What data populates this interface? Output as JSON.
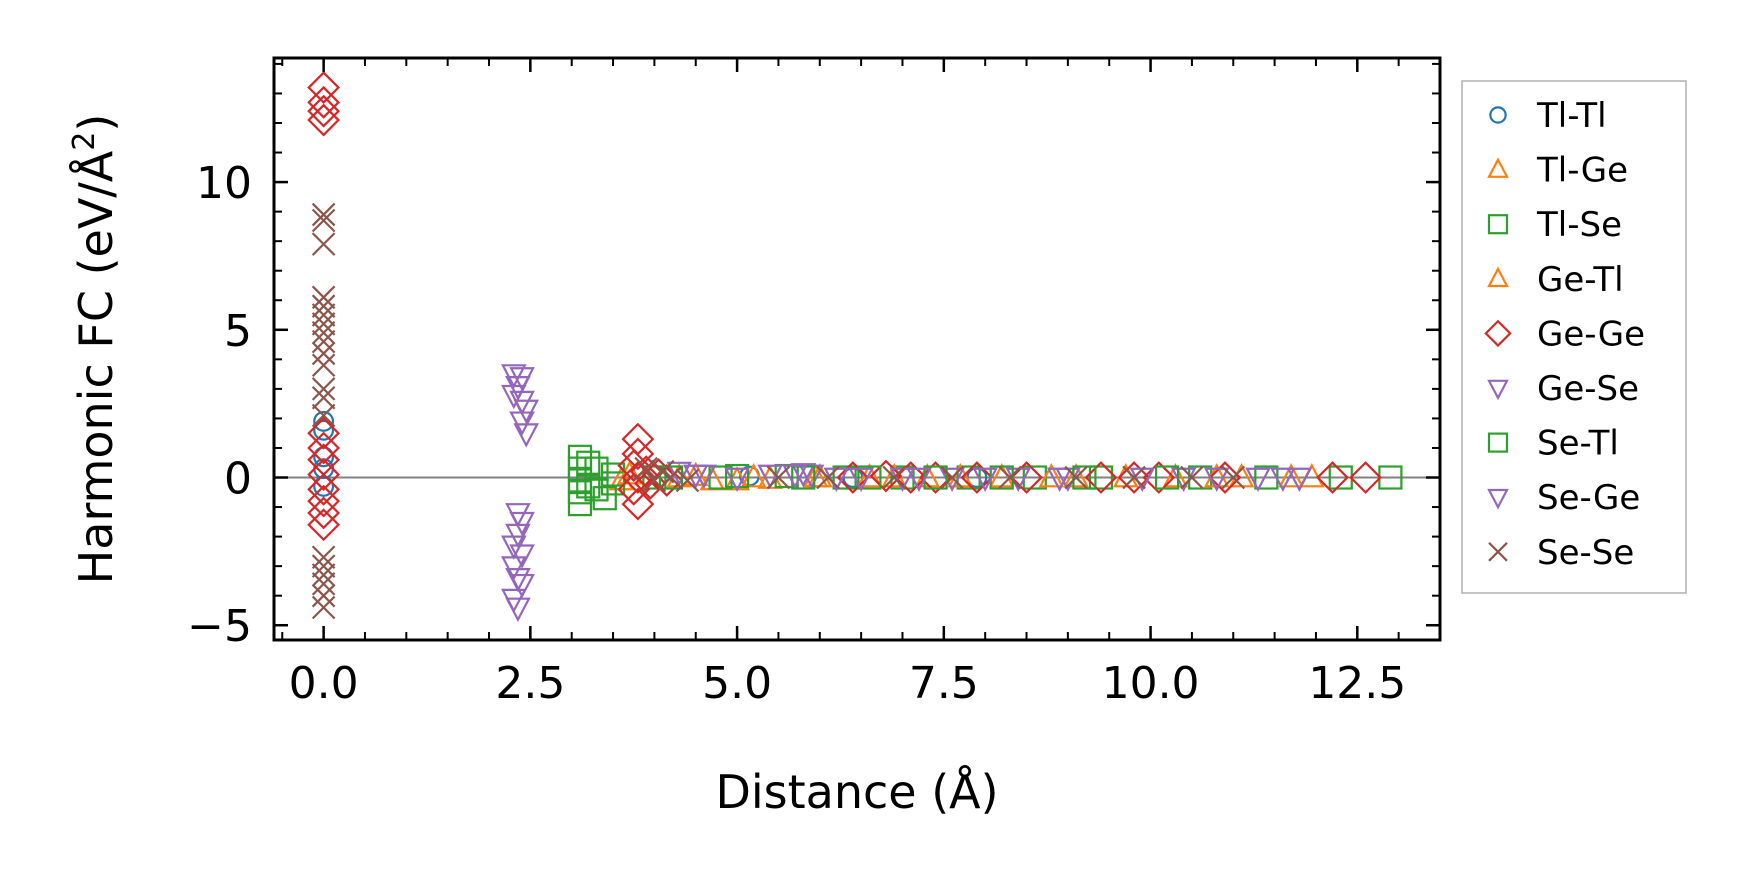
{
  "chart_data": {
    "type": "scatter",
    "title": "",
    "xlabel": "Distance (Å)",
    "ylabel_main": "Harmonic FC (eV/Å",
    "ylabel_sup": "2",
    "ylabel_close": ")",
    "xlim": [
      -0.6,
      13.5
    ],
    "ylim": [
      -5.5,
      14.2
    ],
    "xticks": [
      0.0,
      2.5,
      5.0,
      7.5,
      10.0,
      12.5
    ],
    "xtick_labels": [
      "0.0",
      "2.5",
      "5.0",
      "7.5",
      "10.0",
      "12.5"
    ],
    "xtick_minor_step": 0.5,
    "yticks": [
      -5,
      0,
      5,
      10
    ],
    "ytick_labels": [
      "−5",
      "0",
      "5",
      "10"
    ],
    "ytick_minor_step": 1,
    "zero_line": 0,
    "legend_position": "outside-right",
    "series": [
      {
        "name": "Tl-Tl",
        "marker": "circle",
        "color": "#1f77b4",
        "points": [
          [
            0,
            1.9
          ],
          [
            0,
            1.6
          ],
          [
            0,
            0.7
          ],
          [
            0,
            0.3
          ],
          [
            0,
            -0.3
          ],
          [
            5.15,
            0.05
          ],
          [
            6.4,
            0.0
          ],
          [
            7.9,
            0.0
          ]
        ]
      },
      {
        "name": "Tl-Ge",
        "marker": "triangle-up",
        "color": "#ff7f0e",
        "points": [
          [
            3.6,
            -0.1
          ],
          [
            4.3,
            0.0
          ],
          [
            4.7,
            -0.1
          ],
          [
            5.0,
            -0.1
          ],
          [
            5.4,
            -0.05
          ],
          [
            5.95,
            0.0
          ],
          [
            6.6,
            0.0
          ],
          [
            7.3,
            0.0
          ],
          [
            8.2,
            0.0
          ],
          [
            9.1,
            0.0
          ],
          [
            10.3,
            0.0
          ],
          [
            11.1,
            0.0
          ],
          [
            11.95,
            0.0
          ]
        ]
      },
      {
        "name": "Tl-Se",
        "marker": "square",
        "color": "#2ca02c",
        "points": [
          [
            3.1,
            0.7
          ],
          [
            3.1,
            0.3
          ],
          [
            3.1,
            -0.1
          ],
          [
            3.1,
            -0.5
          ],
          [
            3.1,
            -0.9
          ],
          [
            3.3,
            0.3
          ],
          [
            3.3,
            -0.4
          ],
          [
            3.5,
            0.1
          ],
          [
            3.5,
            -0.2
          ],
          [
            4.0,
            0.0
          ],
          [
            4.8,
            0.0
          ],
          [
            5.6,
            0.05
          ],
          [
            6.3,
            0.0
          ],
          [
            7.0,
            0.0
          ],
          [
            7.8,
            0.0
          ],
          [
            8.6,
            0.0
          ],
          [
            9.4,
            0.0
          ],
          [
            10.6,
            0.0
          ],
          [
            11.4,
            0.0
          ],
          [
            12.3,
            0.0
          ],
          [
            12.9,
            0.0
          ]
        ]
      },
      {
        "name": "Ge-Tl",
        "marker": "triangle-up",
        "color": "#ff7f0e",
        "points": [
          [
            3.7,
            0.1
          ],
          [
            4.5,
            0.05
          ],
          [
            5.2,
            0.0
          ],
          [
            6.0,
            0.0
          ],
          [
            6.9,
            0.0
          ],
          [
            7.7,
            0.0
          ],
          [
            8.8,
            0.0
          ],
          [
            9.7,
            0.0
          ],
          [
            10.8,
            0.0
          ],
          [
            11.7,
            0.0
          ]
        ]
      },
      {
        "name": "Ge-Ge",
        "marker": "diamond",
        "color": "#d62728",
        "points": [
          [
            0,
            13.2
          ],
          [
            0,
            12.7
          ],
          [
            0,
            12.4
          ],
          [
            0,
            12.1
          ],
          [
            0,
            1.5
          ],
          [
            0,
            1.0
          ],
          [
            0,
            0.6
          ],
          [
            0,
            0.1
          ],
          [
            0,
            -0.4
          ],
          [
            0,
            -0.8
          ],
          [
            0,
            -1.2
          ],
          [
            0,
            -1.6
          ],
          [
            3.8,
            1.3
          ],
          [
            3.8,
            0.8
          ],
          [
            3.75,
            0.4
          ],
          [
            3.8,
            0.0
          ],
          [
            3.75,
            -0.4
          ],
          [
            3.8,
            -0.9
          ],
          [
            3.9,
            0.2
          ],
          [
            3.95,
            -0.2
          ],
          [
            4.05,
            0.1
          ],
          [
            4.15,
            -0.1
          ],
          [
            6.4,
            0.0
          ],
          [
            6.8,
            0.05
          ],
          [
            7.1,
            0.0
          ],
          [
            7.4,
            0.0
          ],
          [
            7.9,
            0.0
          ],
          [
            8.5,
            0.0
          ],
          [
            9.4,
            0.0
          ],
          [
            9.8,
            0.0
          ],
          [
            10.1,
            0.0
          ],
          [
            10.9,
            0.0
          ],
          [
            12.2,
            0.0
          ],
          [
            12.6,
            0.0
          ]
        ]
      },
      {
        "name": "Ge-Se",
        "marker": "triangle-down",
        "color": "#9467bd",
        "points": [
          [
            2.3,
            3.5
          ],
          [
            2.4,
            3.4
          ],
          [
            2.35,
            3.1
          ],
          [
            2.3,
            2.8
          ],
          [
            2.4,
            2.6
          ],
          [
            2.45,
            2.3
          ],
          [
            2.4,
            1.9
          ],
          [
            2.45,
            1.5
          ],
          [
            4.3,
            0.2
          ],
          [
            4.6,
            0.1
          ],
          [
            5.4,
            0.1
          ],
          [
            5.8,
            0.15
          ],
          [
            5.9,
            0.1
          ],
          [
            6.2,
            0.0
          ],
          [
            7.0,
            0.0
          ],
          [
            7.6,
            0.0
          ],
          [
            8.4,
            0.0
          ],
          [
            9.0,
            0.0
          ],
          [
            10.4,
            0.0
          ],
          [
            11.3,
            0.0
          ]
        ]
      },
      {
        "name": "Se-Tl",
        "marker": "square",
        "color": "#2ca02c",
        "points": [
          [
            3.2,
            0.5
          ],
          [
            3.2,
            -0.3
          ],
          [
            3.4,
            -0.7
          ],
          [
            4.2,
            0.0
          ],
          [
            5.0,
            0.05
          ],
          [
            5.8,
            0.0
          ],
          [
            6.6,
            0.0
          ],
          [
            7.4,
            0.0
          ],
          [
            8.2,
            0.0
          ],
          [
            9.2,
            0.0
          ],
          [
            10.2,
            0.0
          ]
        ]
      },
      {
        "name": "Se-Ge",
        "marker": "triangle-down",
        "color": "#9467bd",
        "points": [
          [
            2.35,
            -1.2
          ],
          [
            2.4,
            -1.5
          ],
          [
            2.35,
            -1.9
          ],
          [
            2.3,
            -2.3
          ],
          [
            2.4,
            -2.6
          ],
          [
            2.3,
            -3.0
          ],
          [
            2.35,
            -3.4
          ],
          [
            2.4,
            -3.6
          ],
          [
            2.3,
            -4.1
          ],
          [
            2.35,
            -4.4
          ],
          [
            4.5,
            0.1
          ],
          [
            5.0,
            0.0
          ],
          [
            5.7,
            0.1
          ],
          [
            6.5,
            0.0
          ],
          [
            7.2,
            0.0
          ],
          [
            8.0,
            0.0
          ],
          [
            8.9,
            0.0
          ],
          [
            9.9,
            0.0
          ],
          [
            10.8,
            0.0
          ],
          [
            11.6,
            0.0
          ],
          [
            11.8,
            0.0
          ]
        ]
      },
      {
        "name": "Se-Se",
        "marker": "x",
        "color": "#8c564b",
        "points": [
          [
            0,
            8.9
          ],
          [
            0,
            8.7
          ],
          [
            0,
            7.9
          ],
          [
            0,
            6.1
          ],
          [
            0,
            5.8
          ],
          [
            0,
            5.5
          ],
          [
            0,
            5.2
          ],
          [
            0,
            4.9
          ],
          [
            0,
            4.6
          ],
          [
            0,
            4.2
          ],
          [
            0,
            3.8
          ],
          [
            0,
            3.0
          ],
          [
            0,
            2.7
          ],
          [
            0,
            2.1
          ],
          [
            0,
            -2.7
          ],
          [
            0,
            -3.0
          ],
          [
            0,
            -3.3
          ],
          [
            0,
            -3.6
          ],
          [
            0,
            -4.0
          ],
          [
            0,
            -4.4
          ],
          [
            3.9,
            0.3
          ],
          [
            4.0,
            -0.1
          ],
          [
            4.1,
            0.2
          ],
          [
            4.2,
            0.0
          ],
          [
            4.4,
            -0.1
          ],
          [
            5.5,
            0.0
          ],
          [
            6.1,
            0.0
          ],
          [
            6.9,
            0.0
          ],
          [
            7.6,
            0.0
          ],
          [
            8.3,
            0.0
          ],
          [
            9.1,
            0.0
          ],
          [
            9.8,
            0.0
          ],
          [
            10.5,
            0.0
          ],
          [
            11.0,
            0.0
          ]
        ]
      }
    ]
  }
}
